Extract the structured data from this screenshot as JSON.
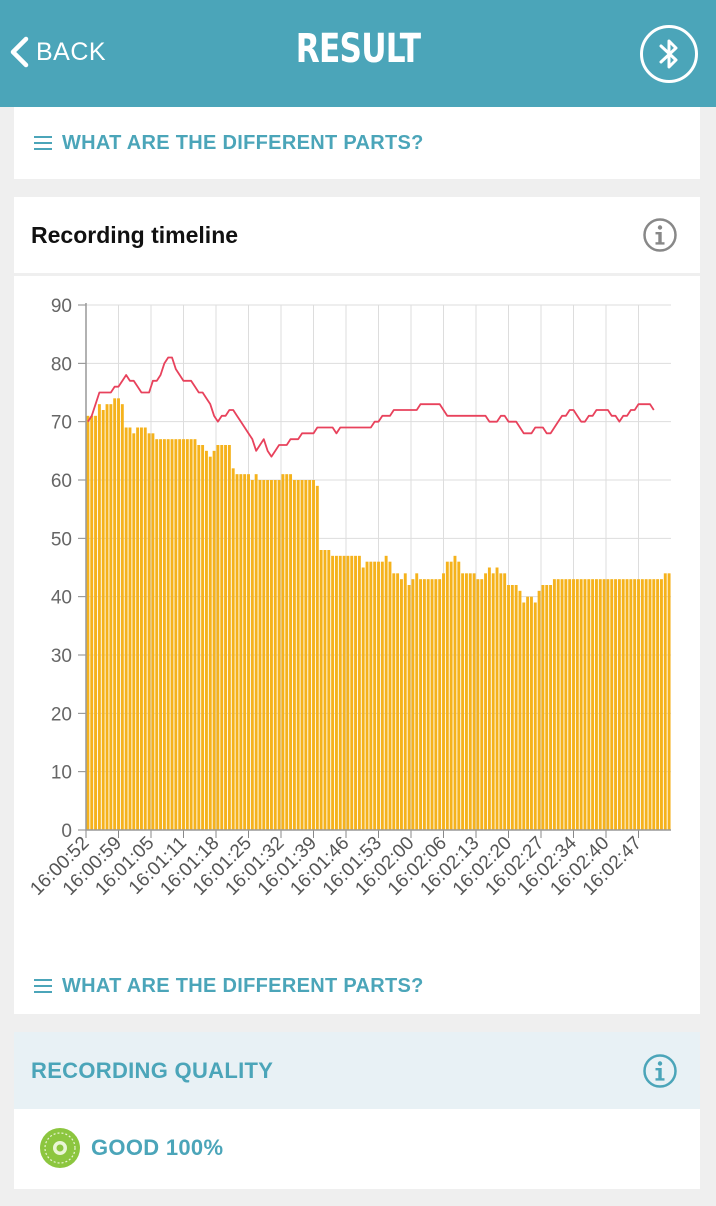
{
  "header": {
    "back_label": "BACK",
    "title": "RESULT",
    "bluetooth_icon": "bluetooth-icon"
  },
  "parts_link_top": {
    "label": "WHAT ARE THE DIFFERENT PARTS?",
    "icon": "menu-icon"
  },
  "timeline": {
    "title": "Recording timeline",
    "info_icon": "info-icon",
    "parts_link": {
      "label": "WHAT ARE THE DIFFERENT PARTS?",
      "icon": "menu-icon"
    }
  },
  "chart_data": {
    "type": "bar",
    "title": "",
    "xlabel": "",
    "ylabel": "",
    "ylim": [
      0,
      90
    ],
    "yticks": [
      0,
      10,
      20,
      30,
      40,
      50,
      60,
      70,
      80,
      90
    ],
    "xtick_labels": [
      "16:00:52",
      "16:00:59",
      "16:01:05",
      "16:01:11",
      "16:01:18",
      "16:01:25",
      "16:01:32",
      "16:01:39",
      "16:01:46",
      "16:01:53",
      "16:02:00",
      "16:02:06",
      "16:02:13",
      "16:02:20",
      "16:02:27",
      "16:02:34",
      "16:02:40",
      "16:02:47"
    ],
    "grid": true,
    "colors": {
      "bars": "#f5b21c",
      "line": "#e8425c",
      "grid": "#dddddd"
    },
    "series": [
      {
        "type": "bar",
        "values": [
          71,
          71,
          71,
          73,
          72,
          73,
          73,
          74,
          74,
          73,
          69,
          69,
          68,
          69,
          69,
          69,
          68,
          68,
          67,
          67,
          67,
          67,
          67,
          67,
          67,
          67,
          67,
          67,
          67,
          66,
          66,
          65,
          64,
          65,
          66,
          66,
          66,
          66,
          62,
          61,
          61,
          61,
          61,
          60,
          61,
          60,
          60,
          60,
          60,
          60,
          60,
          61,
          61,
          61,
          60,
          60,
          60,
          60,
          60,
          60,
          59,
          48,
          48,
          48,
          47,
          47,
          47,
          47,
          47,
          47,
          47,
          47,
          45,
          46,
          46,
          46,
          46,
          46,
          47,
          46,
          44,
          44,
          43,
          44,
          42,
          43,
          44,
          43,
          43,
          43,
          43,
          43,
          43,
          44,
          46,
          46,
          47,
          46,
          44,
          44,
          44,
          44,
          43,
          43,
          44,
          45,
          44,
          45,
          44,
          44,
          42,
          42,
          42,
          41,
          39,
          40,
          40,
          39,
          41,
          42,
          42,
          42,
          43,
          43,
          43,
          43,
          43,
          43,
          43,
          43,
          43,
          43,
          43,
          43,
          43,
          43,
          43,
          43,
          43,
          43,
          43,
          43,
          43,
          43,
          43,
          43,
          43,
          43,
          43,
          43,
          43,
          44,
          44
        ]
      },
      {
        "type": "line",
        "values": [
          70,
          71,
          73,
          75,
          75,
          75,
          75,
          76,
          76,
          77,
          78,
          77,
          77,
          76,
          75,
          75,
          75,
          77,
          77,
          78,
          80,
          81,
          81,
          79,
          78,
          77,
          77,
          77,
          76,
          75,
          75,
          74,
          73,
          71,
          70,
          71,
          71,
          72,
          72,
          71,
          70,
          69,
          68,
          67,
          65,
          66,
          67,
          65,
          64,
          65,
          66,
          66,
          66,
          67,
          67,
          67,
          68,
          68,
          68,
          68,
          69,
          69,
          69,
          69,
          69,
          68,
          69,
          69,
          69,
          69,
          69,
          69,
          69,
          69,
          69,
          70,
          70,
          71,
          71,
          71,
          72,
          72,
          72,
          72,
          72,
          72,
          72,
          73,
          73,
          73,
          73,
          73,
          73,
          72,
          71,
          71,
          71,
          71,
          71,
          71,
          71,
          71,
          71,
          71,
          71,
          70,
          70,
          70,
          71,
          71,
          70,
          70,
          70,
          69,
          68,
          68,
          68,
          69,
          69,
          69,
          68,
          68,
          69,
          70,
          71,
          71,
          72,
          72,
          71,
          70,
          70,
          71,
          71,
          72,
          72,
          72,
          72,
          71,
          71,
          70,
          71,
          71,
          72,
          72,
          73,
          73,
          73,
          73,
          72
        ]
      }
    ]
  },
  "quality": {
    "title": "RECORDING QUALITY",
    "info_icon": "info-icon",
    "badge_icon": "quality-seal-icon",
    "value": "GOOD 100%"
  }
}
